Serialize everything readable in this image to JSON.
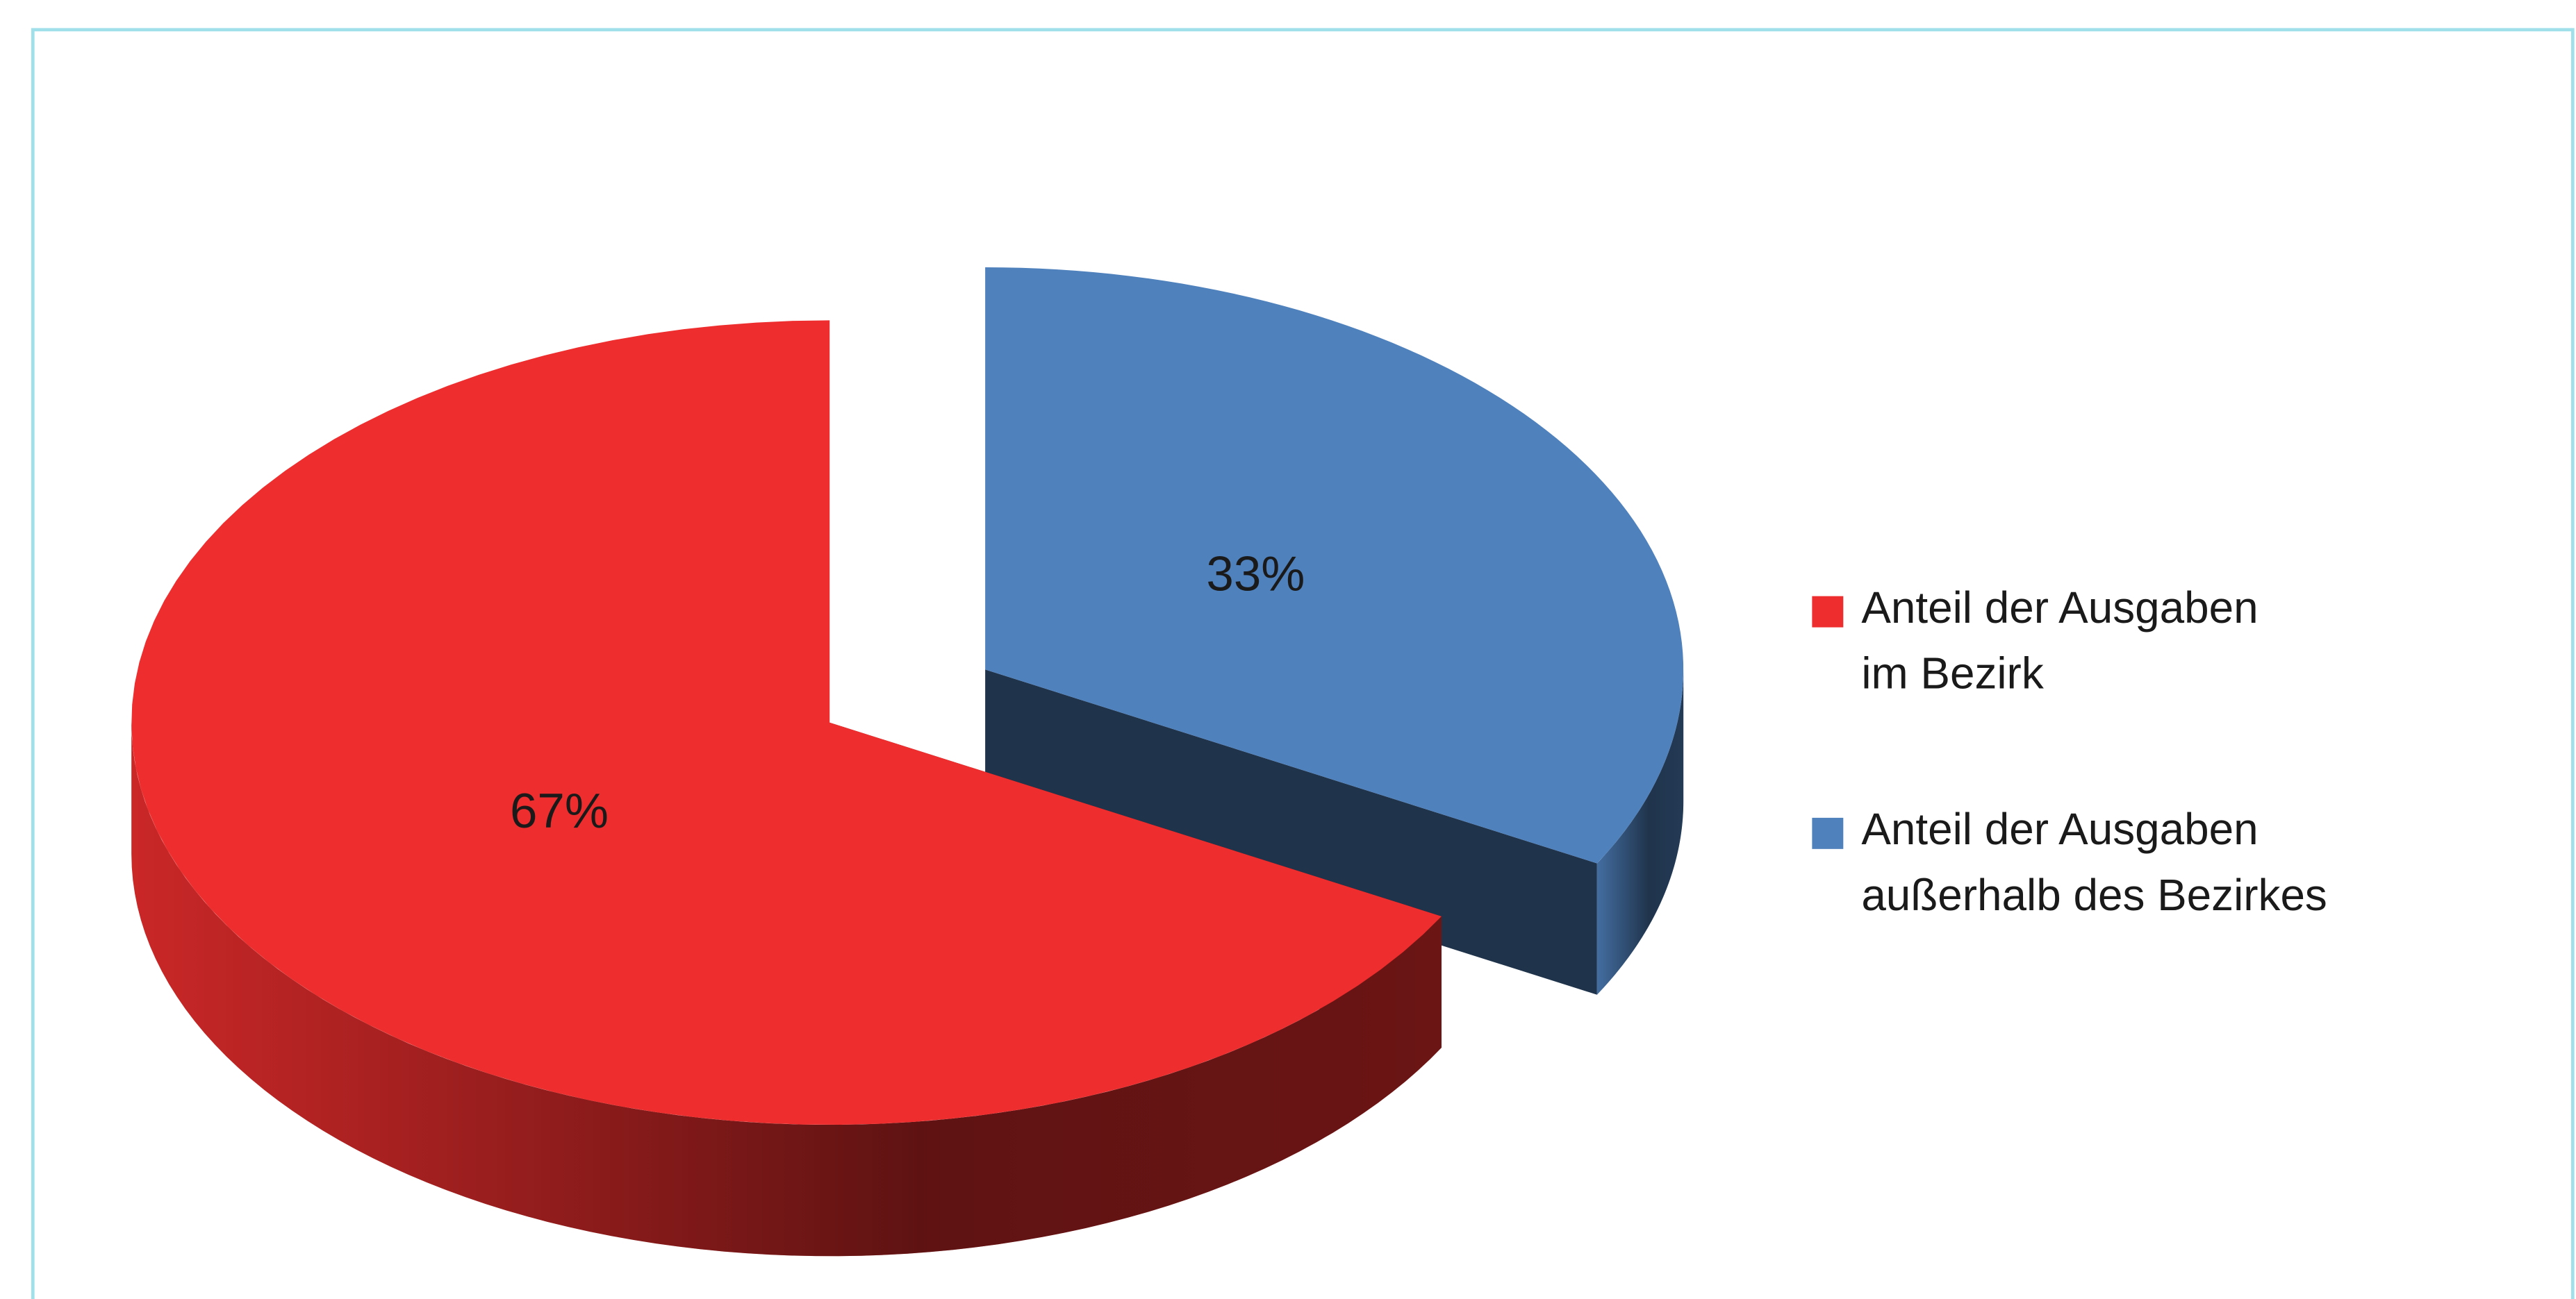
{
  "chart_data": {
    "type": "pie",
    "style": "3d",
    "categories": [
      "Anteil der Ausgaben im Bezirk",
      "Anteil der Ausgaben außerhalb des Bezirkes"
    ],
    "values": [
      67,
      33
    ],
    "value_labels": [
      "67%",
      "33%"
    ],
    "colors": [
      "#ee2e2e",
      "#4f81bd"
    ],
    "explode": [
      false,
      true
    ],
    "legend": "right"
  }
}
